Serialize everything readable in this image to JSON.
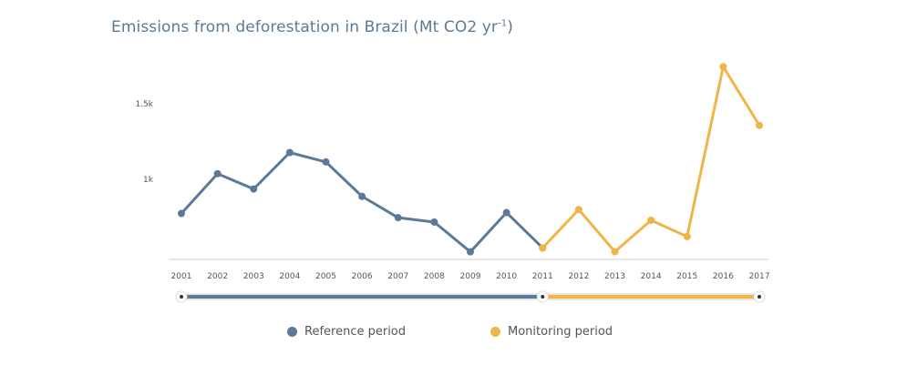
{
  "title": {
    "main": "Emissions from deforestation in Brazil (Mt CO2 yr",
    "sup": "-1",
    "close": ")"
  },
  "colors": {
    "reference": "#5b7a97",
    "monitoring": "#f0b548",
    "axis": "#cccccc",
    "track": "#e6e6e6"
  },
  "legend": {
    "reference_label": "Reference period",
    "monitoring_label": "Monitoring period"
  },
  "chart_data": {
    "type": "line",
    "x": [
      2001,
      2002,
      2003,
      2004,
      2005,
      2006,
      2007,
      2008,
      2009,
      2010,
      2011,
      2012,
      2013,
      2014,
      2015,
      2016,
      2017
    ],
    "x_tick_labels": [
      "2001",
      "2002",
      "2003",
      "2004",
      "2005",
      "2006",
      "2007",
      "2008",
      "2009",
      "2010",
      "2011",
      "2012",
      "2013",
      "2014",
      "2015",
      "2016",
      "2017"
    ],
    "y_tick_labels": [
      "1k",
      "1.5k"
    ],
    "y_ticks": [
      1000,
      1500
    ],
    "series": [
      {
        "name": "Reference period",
        "x": [
          2001,
          2002,
          2003,
          2004,
          2005,
          2006,
          2007,
          2008,
          2009,
          2010,
          2011
        ],
        "values": [
          774,
          1037,
          936,
          1177,
          1115,
          887,
          746,
          717,
          520,
          780,
          546
        ]
      },
      {
        "name": "Monitoring period",
        "x": [
          2011,
          2012,
          2013,
          2014,
          2015,
          2016,
          2017
        ],
        "values": [
          546,
          800,
          521,
          729,
          621,
          1745,
          1357
        ]
      }
    ],
    "xlim": [
      2001,
      2017
    ],
    "ylim": [
      470,
      1800
    ],
    "grid": false,
    "legend_position": "bottom"
  },
  "slider": {
    "range": [
      2001,
      2017
    ],
    "split": 2011
  }
}
